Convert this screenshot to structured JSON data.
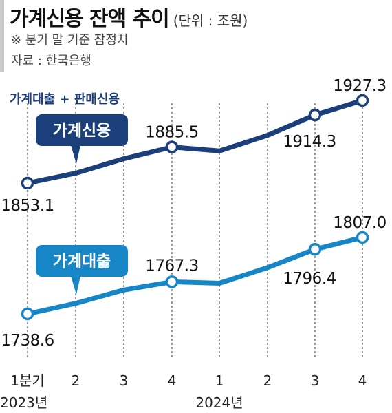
{
  "header": {
    "title": "가계신용 잔액 추이",
    "unit": "(단위 : 조원)",
    "note": "※ 분기 말 기준 잠정치",
    "source": "자료 : 한국은행"
  },
  "legend_caption": "가계대출 + 판매신용",
  "colors": {
    "credit": "#1b3f7a",
    "loans": "#1686c6",
    "grid": "#555555"
  },
  "chart_data": {
    "type": "line",
    "categories": [
      "1분기",
      "2",
      "3",
      "4",
      "1",
      "2",
      "3",
      "4"
    ],
    "year_labels": [
      "2023년",
      "2024년"
    ],
    "series": [
      {
        "name": "가계신용",
        "values": [
          1853.1,
          1862.0,
          1875.0,
          1885.5,
          1882.0,
          1896.0,
          1914.3,
          1927.3
        ],
        "labels": [
          "1853.1",
          null,
          null,
          "1885.5",
          null,
          null,
          "1914.3",
          "1927.3"
        ]
      },
      {
        "name": "가계대출",
        "values": [
          1738.6,
          1748.0,
          1760.0,
          1767.3,
          1766.0,
          1780.0,
          1796.4,
          1807.0
        ],
        "labels": [
          "1738.6",
          null,
          null,
          "1767.3",
          null,
          null,
          "1796.4",
          "1807.0"
        ]
      }
    ]
  }
}
